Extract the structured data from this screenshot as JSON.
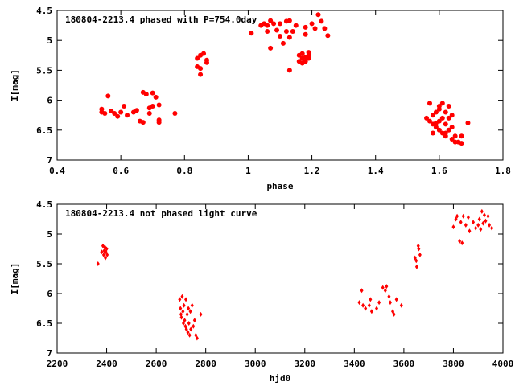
{
  "chart_data": [
    {
      "type": "scatter",
      "title": "180804-2213.4 phased with P=754.0day",
      "xlabel": "phase",
      "ylabel": "I[mag]",
      "xlim": [
        0.4,
        1.8
      ],
      "ylim": [
        7,
        4.5
      ],
      "y_inverted": true,
      "grid": false,
      "legend": "none",
      "color": "#ff0000",
      "marker": "circle",
      "xticks": [
        "0.4",
        "0.6",
        "0.8",
        "1",
        "1.2",
        "1.4",
        "1.6",
        "1.8"
      ],
      "yticks": [
        "4.5",
        "5",
        "5.5",
        "6",
        "6.5",
        "7"
      ],
      "xtick_values": [
        0.4,
        0.6,
        0.8,
        1.0,
        1.2,
        1.4,
        1.6,
        1.8
      ],
      "ytick_values": [
        4.5,
        5.0,
        5.5,
        6.0,
        6.5,
        7.0
      ],
      "points": [
        [
          0.54,
          6.15
        ],
        [
          0.54,
          6.2
        ],
        [
          0.55,
          6.22
        ],
        [
          0.56,
          5.93
        ],
        [
          0.57,
          6.18
        ],
        [
          0.58,
          6.22
        ],
        [
          0.59,
          6.27
        ],
        [
          0.6,
          6.2
        ],
        [
          0.61,
          6.1
        ],
        [
          0.62,
          6.25
        ],
        [
          0.64,
          6.2
        ],
        [
          0.65,
          6.17
        ],
        [
          0.66,
          6.35
        ],
        [
          0.67,
          6.37
        ],
        [
          0.67,
          5.87
        ],
        [
          0.68,
          5.9
        ],
        [
          0.69,
          6.22
        ],
        [
          0.69,
          6.13
        ],
        [
          0.7,
          5.88
        ],
        [
          0.7,
          6.1
        ],
        [
          0.71,
          5.95
        ],
        [
          0.72,
          6.33
        ],
        [
          0.72,
          6.37
        ],
        [
          0.72,
          6.08
        ],
        [
          0.77,
          6.22
        ],
        [
          0.84,
          5.3
        ],
        [
          0.84,
          5.44
        ],
        [
          0.85,
          5.25
        ],
        [
          0.85,
          5.47
        ],
        [
          0.85,
          5.57
        ],
        [
          0.86,
          5.22
        ],
        [
          0.87,
          5.33
        ],
        [
          0.87,
          5.37
        ],
        [
          1.01,
          4.88
        ],
        [
          1.04,
          4.75
        ],
        [
          1.05,
          4.72
        ],
        [
          1.06,
          4.75
        ],
        [
          1.06,
          4.85
        ],
        [
          1.07,
          4.67
        ],
        [
          1.07,
          5.13
        ],
        [
          1.08,
          4.72
        ],
        [
          1.09,
          4.83
        ],
        [
          1.1,
          4.93
        ],
        [
          1.1,
          4.72
        ],
        [
          1.11,
          5.05
        ],
        [
          1.12,
          4.68
        ],
        [
          1.12,
          4.85
        ],
        [
          1.13,
          4.67
        ],
        [
          1.13,
          4.95
        ],
        [
          1.13,
          5.5
        ],
        [
          1.14,
          4.85
        ],
        [
          1.15,
          4.75
        ],
        [
          1.16,
          5.35
        ],
        [
          1.16,
          5.25
        ],
        [
          1.17,
          5.3
        ],
        [
          1.18,
          4.78
        ],
        [
          1.18,
          4.9
        ],
        [
          1.19,
          5.25
        ],
        [
          1.19,
          5.3
        ],
        [
          1.2,
          4.72
        ],
        [
          1.21,
          4.8
        ],
        [
          1.22,
          4.57
        ],
        [
          1.23,
          4.68
        ],
        [
          1.24,
          4.8
        ],
        [
          1.25,
          4.92
        ],
        [
          1.17,
          5.22
        ],
        [
          1.18,
          5.35
        ],
        [
          1.19,
          5.2
        ],
        [
          1.17,
          5.38
        ],
        [
          1.18,
          5.28
        ],
        [
          1.56,
          6.3
        ],
        [
          1.57,
          6.05
        ],
        [
          1.57,
          6.35
        ],
        [
          1.58,
          6.4
        ],
        [
          1.58,
          6.25
        ],
        [
          1.59,
          6.2
        ],
        [
          1.59,
          6.45
        ],
        [
          1.6,
          6.1
        ],
        [
          1.6,
          6.35
        ],
        [
          1.6,
          6.5
        ],
        [
          1.61,
          6.05
        ],
        [
          1.61,
          6.3
        ],
        [
          1.61,
          6.55
        ],
        [
          1.62,
          6.2
        ],
        [
          1.62,
          6.4
        ],
        [
          1.62,
          6.6
        ],
        [
          1.63,
          6.1
        ],
        [
          1.63,
          6.3
        ],
        [
          1.63,
          6.5
        ],
        [
          1.64,
          6.25
        ],
        [
          1.64,
          6.45
        ],
        [
          1.64,
          6.65
        ],
        [
          1.65,
          6.6
        ],
        [
          1.65,
          6.7
        ],
        [
          1.66,
          6.7
        ],
        [
          1.67,
          6.6
        ],
        [
          1.67,
          6.72
        ],
        [
          1.69,
          6.38
        ],
        [
          1.62,
          6.55
        ],
        [
          1.6,
          6.15
        ],
        [
          1.59,
          6.38
        ],
        [
          1.58,
          6.55
        ]
      ]
    },
    {
      "type": "scatter",
      "title": "180804-2213.4 not phased light curve",
      "xlabel": "hjd0",
      "ylabel": "I[mag]",
      "xlim": [
        2200,
        4000
      ],
      "ylim": [
        7,
        4.5
      ],
      "y_inverted": true,
      "grid": false,
      "legend": "none",
      "color": "#ff0000",
      "marker": "diamond",
      "xticks": [
        "2200",
        "2400",
        "2600",
        "2800",
        "3000",
        "3200",
        "3400",
        "3600",
        "3800",
        "4000"
      ],
      "yticks": [
        "4.5",
        "5",
        "5.5",
        "6",
        "6.5",
        "7"
      ],
      "xtick_values": [
        2200,
        2400,
        2600,
        2800,
        3000,
        3200,
        3400,
        3600,
        3800,
        4000
      ],
      "ytick_values": [
        4.5,
        5.0,
        5.5,
        6.0,
        6.5,
        7.0
      ],
      "points": [
        [
          2365,
          5.5
        ],
        [
          2380,
          5.3
        ],
        [
          2385,
          5.2
        ],
        [
          2388,
          5.35
        ],
        [
          2390,
          5.28
        ],
        [
          2393,
          5.22
        ],
        [
          2395,
          5.4
        ],
        [
          2397,
          5.3
        ],
        [
          2400,
          5.25
        ],
        [
          2402,
          5.35
        ],
        [
          2695,
          6.1
        ],
        [
          2698,
          6.25
        ],
        [
          2700,
          6.35
        ],
        [
          2702,
          6.4
        ],
        [
          2705,
          6.05
        ],
        [
          2708,
          6.3
        ],
        [
          2710,
          6.5
        ],
        [
          2712,
          6.2
        ],
        [
          2715,
          6.45
        ],
        [
          2718,
          6.55
        ],
        [
          2720,
          6.1
        ],
        [
          2722,
          6.6
        ],
        [
          2725,
          6.35
        ],
        [
          2728,
          6.65
        ],
        [
          2730,
          6.25
        ],
        [
          2732,
          6.5
        ],
        [
          2735,
          6.7
        ],
        [
          2738,
          6.3
        ],
        [
          2740,
          6.6
        ],
        [
          2745,
          6.2
        ],
        [
          2750,
          6.55
        ],
        [
          2755,
          6.45
        ],
        [
          2760,
          6.7
        ],
        [
          2765,
          6.75
        ],
        [
          2780,
          6.35
        ],
        [
          3420,
          6.15
        ],
        [
          3430,
          5.95
        ],
        [
          3435,
          6.2
        ],
        [
          3445,
          6.25
        ],
        [
          3460,
          6.2
        ],
        [
          3465,
          6.1
        ],
        [
          3470,
          6.3
        ],
        [
          3490,
          6.25
        ],
        [
          3500,
          6.15
        ],
        [
          3515,
          5.9
        ],
        [
          3525,
          5.95
        ],
        [
          3530,
          5.88
        ],
        [
          3540,
          6.05
        ],
        [
          3545,
          6.15
        ],
        [
          3555,
          6.3
        ],
        [
          3560,
          6.35
        ],
        [
          3570,
          6.1
        ],
        [
          3590,
          6.2
        ],
        [
          3645,
          5.4
        ],
        [
          3650,
          5.45
        ],
        [
          3652,
          5.55
        ],
        [
          3658,
          5.2
        ],
        [
          3660,
          5.25
        ],
        [
          3665,
          5.35
        ],
        [
          3800,
          4.88
        ],
        [
          3810,
          4.75
        ],
        [
          3815,
          4.7
        ],
        [
          3825,
          5.12
        ],
        [
          3830,
          4.8
        ],
        [
          3835,
          5.15
        ],
        [
          3840,
          4.7
        ],
        [
          3850,
          4.85
        ],
        [
          3860,
          4.72
        ],
        [
          3865,
          4.95
        ],
        [
          3880,
          4.8
        ],
        [
          3890,
          4.9
        ],
        [
          3900,
          4.85
        ],
        [
          3905,
          4.75
        ],
        [
          3910,
          4.92
        ],
        [
          3915,
          4.62
        ],
        [
          3920,
          4.82
        ],
        [
          3925,
          4.68
        ],
        [
          3930,
          4.78
        ],
        [
          3940,
          4.7
        ],
        [
          3945,
          4.85
        ],
        [
          3955,
          4.9
        ]
      ]
    }
  ]
}
